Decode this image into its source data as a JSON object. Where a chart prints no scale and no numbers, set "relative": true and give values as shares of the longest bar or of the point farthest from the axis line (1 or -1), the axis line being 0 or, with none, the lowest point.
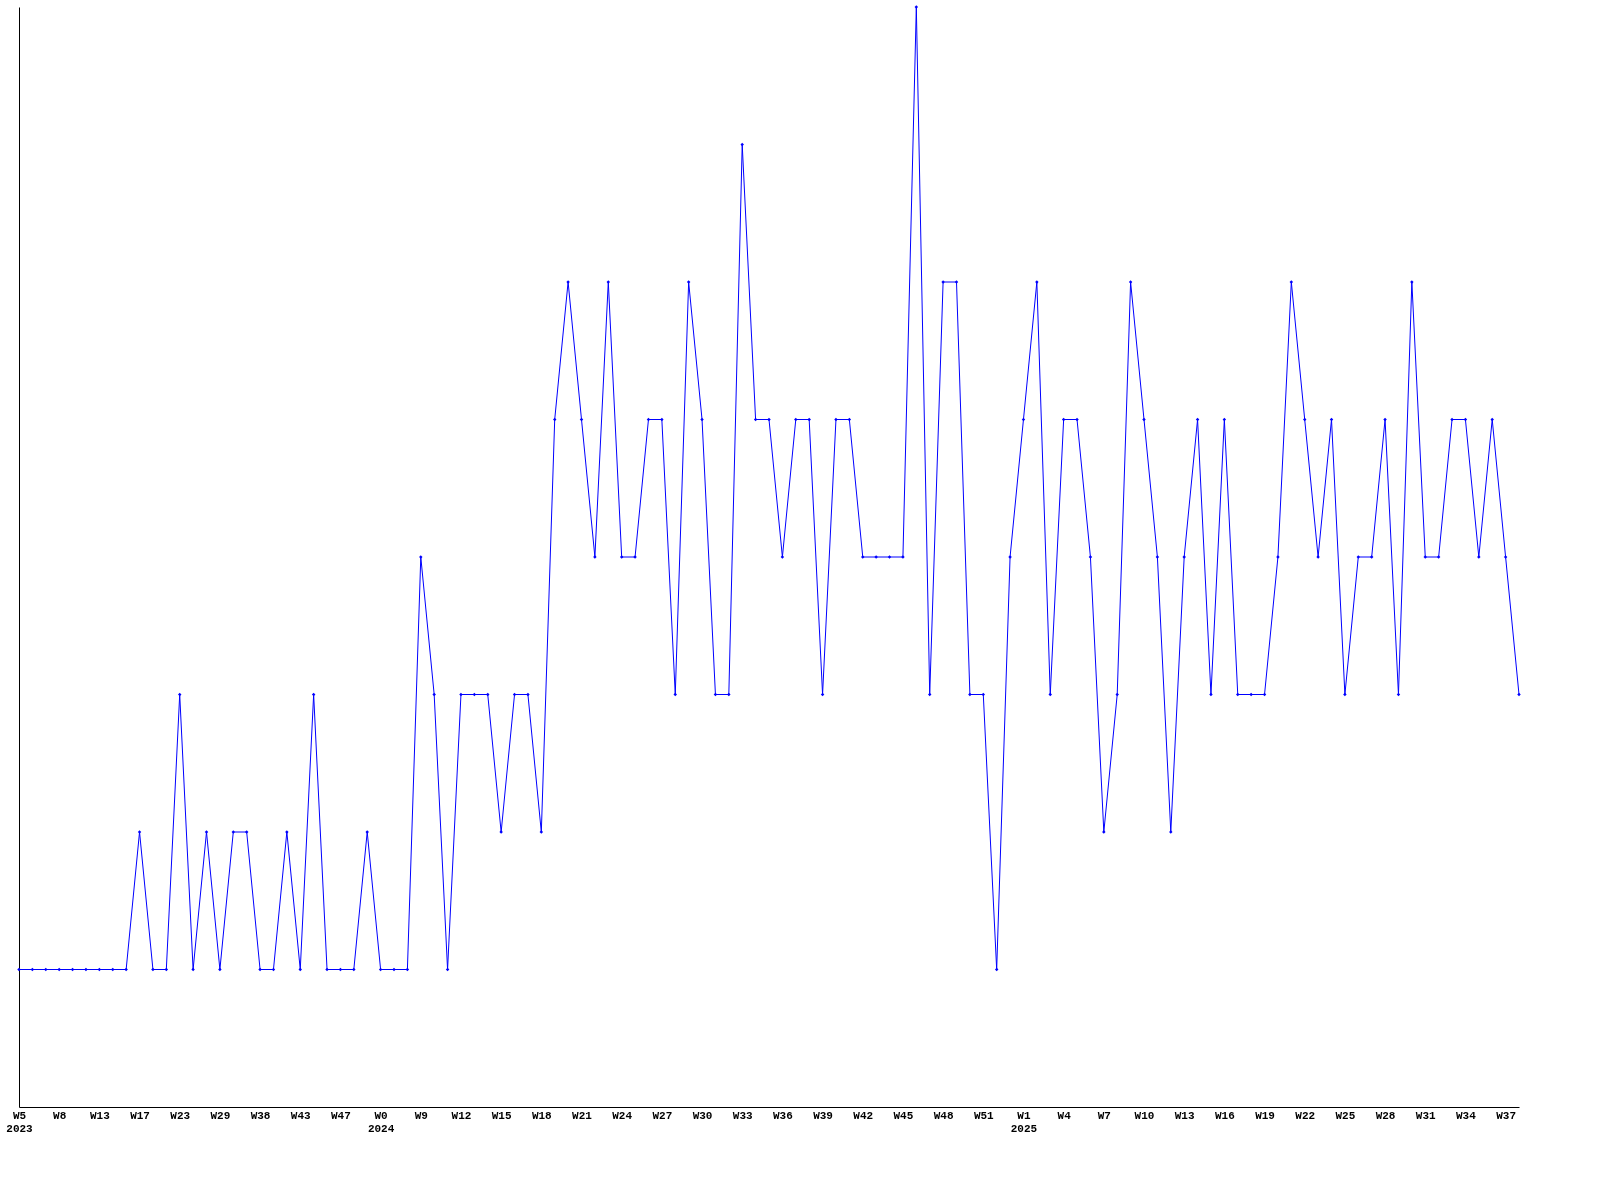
{
  "chart_data": {
    "type": "line",
    "relative": true,
    "color": "#0000ff",
    "marker": "diamond",
    "line_style": "solid",
    "grid": false,
    "categories": [
      "W5\n2023",
      null,
      null,
      "W8",
      null,
      null,
      "W13",
      null,
      null,
      "W17",
      null,
      null,
      "W23",
      null,
      null,
      "W29",
      null,
      null,
      "W38",
      null,
      null,
      "W43",
      null,
      null,
      "W47",
      null,
      null,
      "W0\n2024",
      null,
      null,
      "W9",
      null,
      null,
      "W12",
      null,
      null,
      "W15",
      null,
      null,
      "W18",
      null,
      null,
      "W21",
      null,
      null,
      "W24",
      null,
      null,
      "W27",
      null,
      null,
      "W30",
      null,
      null,
      "W33",
      null,
      null,
      "W36",
      null,
      null,
      "W39",
      null,
      null,
      "W42",
      null,
      null,
      "W45",
      null,
      null,
      "W48",
      null,
      null,
      "W51",
      null,
      null,
      "W1\n2025",
      null,
      null,
      "W4",
      null,
      null,
      "W7",
      null,
      null,
      "W10",
      null,
      null,
      "W13",
      null,
      null,
      "W16",
      null,
      null,
      "W19",
      null,
      null,
      "W22",
      null,
      null,
      "W25",
      null,
      null,
      "W28",
      null,
      null,
      "W31",
      null,
      null,
      "W34",
      null,
      null,
      "W37",
      null
    ],
    "values": [
      0.125,
      0.125,
      0.125,
      0.125,
      0.125,
      0.125,
      0.125,
      0.125,
      0.125,
      0.25,
      0.125,
      0.125,
      0.375,
      0.125,
      0.25,
      0.125,
      0.25,
      0.25,
      0.125,
      0.125,
      0.25,
      0.125,
      0.375,
      0.125,
      0.125,
      0.125,
      0.25,
      0.125,
      0.125,
      0.125,
      0.5,
      0.375,
      0.125,
      0.375,
      0.375,
      0.375,
      0.25,
      0.375,
      0.375,
      0.25,
      0.625,
      0.75,
      0.625,
      0.5,
      0.75,
      0.5,
      0.5,
      0.625,
      0.625,
      0.375,
      0.75,
      0.625,
      0.375,
      0.375,
      0.875,
      0.625,
      0.625,
      0.5,
      0.625,
      0.625,
      0.375,
      0.625,
      0.625,
      0.5,
      0.5,
      0.5,
      0.5,
      1,
      0.375,
      0.75,
      0.75,
      0.375,
      0.375,
      0.125,
      0.5,
      0.625,
      0.75,
      0.375,
      0.625,
      0.625,
      0.5,
      0.25,
      0.375,
      0.75,
      0.625,
      0.5,
      0.25,
      0.5,
      0.625,
      0.375,
      0.625,
      0.375,
      0.375,
      0.375,
      0.5,
      0.75,
      0.625,
      0.5,
      0.625,
      0.375,
      0.5,
      0.5,
      0.625,
      0.375,
      0.75,
      0.5,
      0.5,
      0.625,
      0.625,
      0.5,
      0.625,
      0.5,
      0.375
    ]
  }
}
